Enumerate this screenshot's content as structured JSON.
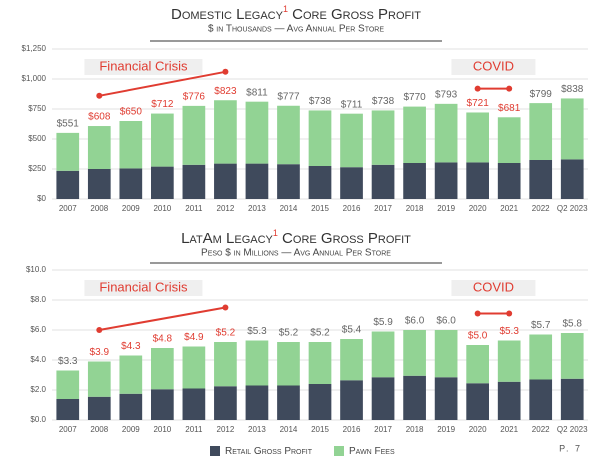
{
  "chart_data": [
    {
      "type": "bar",
      "stacked": true,
      "title_parts": [
        "Domestic Legacy",
        "1",
        " Core Gross Profit"
      ],
      "subtitle": "$ in Thousands — Avg Annual Per Store",
      "categories": [
        "2007",
        "2008",
        "2009",
        "2010",
        "2011",
        "2012",
        "2013",
        "2014",
        "2015",
        "2016",
        "2017",
        "2018",
        "2019",
        "2020",
        "2021",
        "2022",
        "Q2 2023"
      ],
      "series": [
        {
          "values": [
            235,
            250,
            255,
            270,
            285,
            295,
            295,
            290,
            275,
            265,
            285,
            300,
            305,
            305,
            300,
            325,
            330
          ]
        },
        {
          "values": [
            316,
            358,
            395,
            442,
            491,
            528,
            516,
            487,
            463,
            446,
            453,
            470,
            488,
            416,
            381,
            474,
            508
          ]
        }
      ],
      "totals": [
        551,
        608,
        650,
        712,
        776,
        823,
        811,
        777,
        738,
        711,
        738,
        770,
        793,
        721,
        681,
        799,
        838
      ],
      "total_labels": [
        "$551",
        "$608",
        "$650",
        "$712",
        "$776",
        "$823",
        "$811",
        "$777",
        "$738",
        "$711",
        "$738",
        "$770",
        "$793",
        "$721",
        "$681",
        "$799",
        "$838"
      ],
      "total_label_colors": [
        "#666",
        "#e03c31",
        "#e03c31",
        "#e03c31",
        "#e03c31",
        "#e03c31",
        "#666",
        "#666",
        "#666",
        "#666",
        "#666",
        "#666",
        "#666",
        "#e03c31",
        "#e03c31",
        "#666",
        "#666"
      ],
      "ylim": [
        0,
        1250
      ],
      "yticks": [
        {
          "value": 0,
          "label": "$0"
        },
        {
          "value": 250,
          "label": "$250"
        },
        {
          "value": 500,
          "label": "$500"
        },
        {
          "value": 750,
          "label": "$750"
        },
        {
          "value": 1000,
          "label": "$1,000"
        },
        {
          "value": 1250,
          "label": "$1,250"
        }
      ],
      "grid": true,
      "annotations": [
        {
          "text": "Financial Crisis",
          "from": "2008",
          "to": "2012",
          "y_start": 860,
          "y_end": 1060,
          "color": "#e03c31"
        },
        {
          "text": "COVID",
          "from": "2020",
          "to": "2021",
          "y_start": 920,
          "y_end": 920,
          "color": "#e03c31"
        }
      ]
    },
    {
      "type": "bar",
      "stacked": true,
      "title_parts": [
        "LatAm Legacy",
        "1",
        " Core Gross Profit"
      ],
      "subtitle": "Peso $ in Millions — Avg Annual Per Store",
      "categories": [
        "2007",
        "2008",
        "2009",
        "2010",
        "2011",
        "2012",
        "2013",
        "2014",
        "2015",
        "2016",
        "2017",
        "2018",
        "2019",
        "2020",
        "2021",
        "2022",
        "Q2 2023"
      ],
      "series": [
        {
          "values": [
            1.4,
            1.55,
            1.75,
            2.05,
            2.1,
            2.25,
            2.3,
            2.3,
            2.4,
            2.65,
            2.85,
            2.95,
            2.85,
            2.45,
            2.55,
            2.7,
            2.75
          ]
        },
        {
          "values": [
            1.9,
            2.35,
            2.55,
            2.75,
            2.8,
            2.95,
            3.0,
            2.9,
            2.8,
            2.75,
            3.05,
            3.05,
            3.15,
            2.55,
            2.75,
            3.0,
            3.05
          ]
        }
      ],
      "totals": [
        3.3,
        3.9,
        4.3,
        4.8,
        4.9,
        5.2,
        5.3,
        5.2,
        5.2,
        5.4,
        5.9,
        6.0,
        6.0,
        5.0,
        5.3,
        5.7,
        5.8
      ],
      "total_labels": [
        "$3.3",
        "$3.9",
        "$4.3",
        "$4.8",
        "$4.9",
        "$5.2",
        "$5.3",
        "$5.2",
        "$5.2",
        "$5.4",
        "$5.9",
        "$6.0",
        "$6.0",
        "$5.0",
        "$5.3",
        "$5.7",
        "$5.8"
      ],
      "total_label_colors": [
        "#666",
        "#e03c31",
        "#e03c31",
        "#e03c31",
        "#e03c31",
        "#e03c31",
        "#666",
        "#666",
        "#666",
        "#666",
        "#666",
        "#666",
        "#666",
        "#e03c31",
        "#e03c31",
        "#666",
        "#666"
      ],
      "ylim": [
        0,
        10
      ],
      "yticks": [
        {
          "value": 0,
          "label": "$0.0"
        },
        {
          "value": 2,
          "label": "$2.0"
        },
        {
          "value": 4,
          "label": "$4.0"
        },
        {
          "value": 6,
          "label": "$6.0"
        },
        {
          "value": 8,
          "label": "$8.0"
        },
        {
          "value": 10,
          "label": "$10.0"
        }
      ],
      "grid": true,
      "annotations": [
        {
          "text": "Financial Crisis",
          "from": "2008",
          "to": "2012",
          "y_start": 6.0,
          "y_end": 7.5,
          "color": "#e03c31"
        },
        {
          "text": "COVID",
          "from": "2020",
          "to": "2021",
          "y_start": 7.1,
          "y_end": 7.1,
          "color": "#e03c31"
        }
      ]
    }
  ],
  "legend": {
    "items": [
      {
        "name": "Retail Gross Profit",
        "color": "#3f4a5c"
      },
      {
        "name": "Pawn Fees",
        "color": "#92d394"
      }
    ]
  },
  "page_number": "P. 7"
}
